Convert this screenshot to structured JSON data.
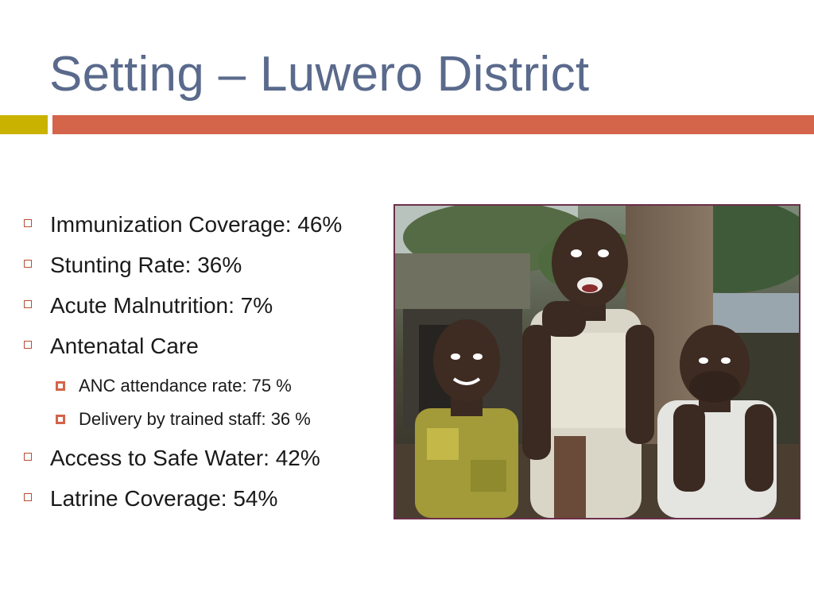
{
  "slide": {
    "title": "Setting – Luwero District"
  },
  "bullets": [
    {
      "text": "Immunization Coverage: 46%"
    },
    {
      "text": "Stunting Rate: 36%"
    },
    {
      "text": "Acute Malnutrition: 7%"
    },
    {
      "text": "Antenatal Care"
    },
    {
      "text": "Access to Safe Water: 42%"
    },
    {
      "text": "Latrine Coverage: 54%"
    }
  ],
  "sub_bullets": [
    {
      "text": "ANC attendance rate: 75 %"
    },
    {
      "text": "Delivery by trained staff: 36 %"
    }
  ],
  "colors": {
    "title": "#5a6a8c",
    "accent_yellow": "#c9b300",
    "accent_orange": "#d4644a",
    "photo_border": "#6b2f4a"
  }
}
